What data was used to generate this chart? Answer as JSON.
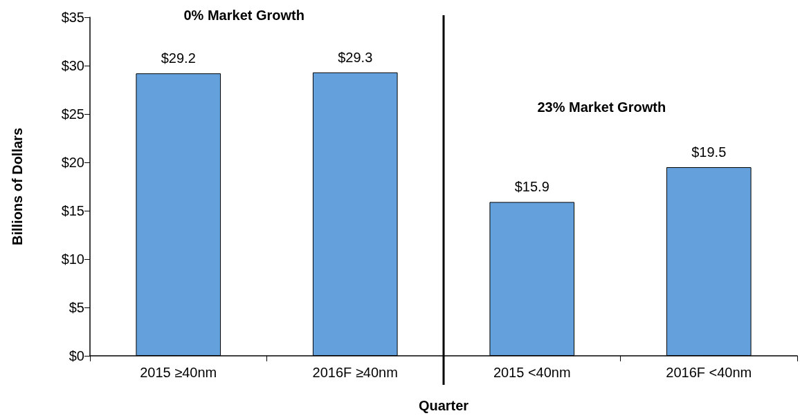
{
  "chart_data": {
    "type": "bar",
    "xlabel": "Quarter",
    "ylabel": "Billions of Dollars",
    "categories": [
      "2015 ≥40nm",
      "2016F ≥40nm",
      "2015 <40nm",
      "2016F <40nm"
    ],
    "values": [
      29.2,
      29.3,
      15.9,
      19.5
    ],
    "value_labels": [
      "$29.2",
      "$29.3",
      "$15.9",
      "$19.5"
    ],
    "color": "#64a0dc",
    "ylim": [
      0,
      35
    ],
    "yticks": [
      {
        "value": 0,
        "label": "$0"
      },
      {
        "value": 5,
        "label": "$5"
      },
      {
        "value": 10,
        "label": "$10"
      },
      {
        "value": 15,
        "label": "$15"
      },
      {
        "value": 20,
        "label": "$20"
      },
      {
        "value": 25,
        "label": "$25"
      },
      {
        "value": 30,
        "label": "$30"
      },
      {
        "value": 35,
        "label": "$35"
      }
    ],
    "annotations": [
      "0% Market Growth",
      "23% Market Growth"
    ],
    "grid": false
  }
}
